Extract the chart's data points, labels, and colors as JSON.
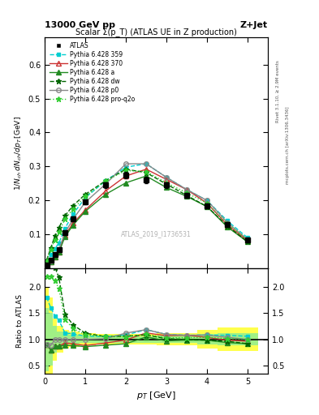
{
  "title_top": "13000 GeV pp",
  "title_right": "Z+Jet",
  "plot_title": "Scalar Σ(p_T) (ATLAS UE in Z production)",
  "watermark": "ATLAS_2019_I1736531",
  "rivet_text": "Rivet 3.1.10, ≥ 2.9M events",
  "mcplots_text": "mcplots.cern.ch [arXiv:1306.3436]",
  "ylabel_main": "$1/N_{ch}\\;dN_{ch}/dp_T\\;[\\mathrm{GeV}^{-1}]$",
  "ylabel_ratio": "Ratio to ATLAS",
  "xlabel": "$p_T$ [GeV]",
  "xlim": [
    0,
    5.5
  ],
  "ylim_main": [
    0,
    0.68
  ],
  "ylim_ratio": [
    0.35,
    2.35
  ],
  "yticks_main": [
    0.1,
    0.2,
    0.3,
    0.4,
    0.5,
    0.6
  ],
  "yticks_ratio": [
    0.5,
    1.0,
    1.5,
    2.0
  ],
  "pt_values": [
    0.05,
    0.15,
    0.25,
    0.35,
    0.5,
    0.7,
    1.0,
    1.5,
    2.0,
    2.5,
    3.0,
    3.5,
    4.0,
    4.5,
    5.0
  ],
  "atlas_data": [
    0.01,
    0.025,
    0.04,
    0.055,
    0.105,
    0.145,
    0.195,
    0.245,
    0.275,
    0.26,
    0.245,
    0.215,
    0.185,
    0.13,
    0.085
  ],
  "atlas_err": [
    0.002,
    0.003,
    0.004,
    0.005,
    0.006,
    0.007,
    0.007,
    0.008,
    0.009,
    0.009,
    0.008,
    0.008,
    0.007,
    0.006,
    0.005
  ],
  "pythia359_data": [
    0.018,
    0.04,
    0.058,
    0.075,
    0.118,
    0.16,
    0.208,
    0.258,
    0.298,
    0.308,
    0.268,
    0.232,
    0.2,
    0.14,
    0.09
  ],
  "pythia370_data": [
    0.009,
    0.02,
    0.035,
    0.048,
    0.098,
    0.133,
    0.172,
    0.228,
    0.272,
    0.292,
    0.262,
    0.232,
    0.192,
    0.128,
    0.082
  ],
  "pythia_a_data": [
    0.009,
    0.02,
    0.035,
    0.048,
    0.093,
    0.128,
    0.168,
    0.218,
    0.252,
    0.272,
    0.238,
    0.212,
    0.182,
    0.122,
    0.078
  ],
  "pythia_dw_data": [
    0.025,
    0.06,
    0.095,
    0.12,
    0.155,
    0.185,
    0.218,
    0.258,
    0.292,
    0.282,
    0.248,
    0.215,
    0.182,
    0.125,
    0.078
  ],
  "pythia_p0_data": [
    0.009,
    0.022,
    0.04,
    0.055,
    0.105,
    0.145,
    0.195,
    0.248,
    0.308,
    0.308,
    0.268,
    0.232,
    0.2,
    0.135,
    0.085
  ],
  "pythia_q2o_data": [
    0.022,
    0.055,
    0.085,
    0.108,
    0.145,
    0.175,
    0.212,
    0.258,
    0.288,
    0.285,
    0.252,
    0.222,
    0.192,
    0.132,
    0.085
  ],
  "atlas_color": "#000000",
  "py359_color": "#00ced1",
  "py370_color": "#cc3333",
  "py_a_color": "#228B22",
  "py_dw_color": "#006400",
  "py_p0_color": "#888888",
  "py_q2o_color": "#32cd32",
  "background_color": "#ffffff"
}
